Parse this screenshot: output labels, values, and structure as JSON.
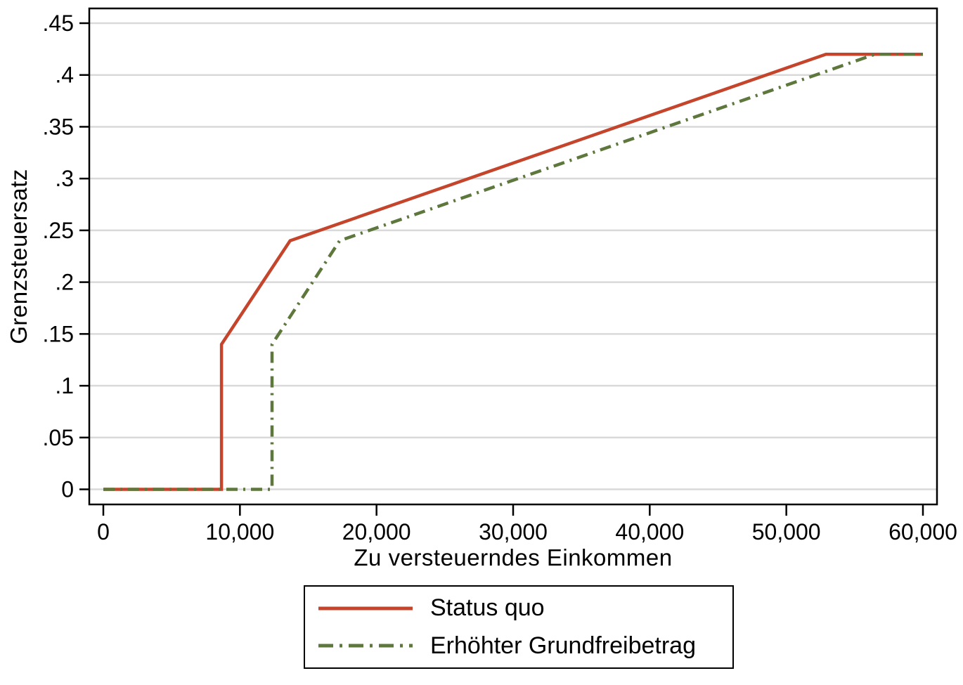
{
  "figure": {
    "background": "#ffffff",
    "frame_color": "#000000",
    "gridline_color": "#d9d9d9",
    "tick_color": "#000000",
    "text_color": "#000000"
  },
  "chart_data": {
    "type": "line",
    "title": "",
    "xlabel": "Zu versteuerndes Einkommen",
    "ylabel": "Grenzsteuersatz",
    "xlim": [
      0,
      60000
    ],
    "ylim": [
      0,
      0.45
    ],
    "grid": "horizontal-only",
    "legend_position": "bottom-center",
    "x_ticks": [
      {
        "value": 0,
        "label": "0"
      },
      {
        "value": 10000,
        "label": "10,000"
      },
      {
        "value": 20000,
        "label": "20,000"
      },
      {
        "value": 30000,
        "label": "30,000"
      },
      {
        "value": 40000,
        "label": "40,000"
      },
      {
        "value": 50000,
        "label": "50,000"
      },
      {
        "value": 60000,
        "label": "60,000"
      }
    ],
    "y_ticks": [
      {
        "value": 0,
        "label": "0"
      },
      {
        "value": 0.05,
        "label": ".05"
      },
      {
        "value": 0.1,
        "label": ".1"
      },
      {
        "value": 0.15,
        "label": ".15"
      },
      {
        "value": 0.2,
        "label": ".2"
      },
      {
        "value": 0.25,
        "label": ".25"
      },
      {
        "value": 0.3,
        "label": ".3"
      },
      {
        "value": 0.35,
        "label": ".35"
      },
      {
        "value": 0.4,
        "label": ".4"
      },
      {
        "value": 0.45,
        "label": ".45"
      }
    ],
    "series": [
      {
        "name": "Status quo",
        "color": "#c5452c",
        "style": "solid",
        "points": [
          [
            0,
            0
          ],
          [
            8650,
            0
          ],
          [
            8650,
            0.14
          ],
          [
            13670,
            0.24
          ],
          [
            52900,
            0.42
          ],
          [
            60000,
            0.42
          ]
        ]
      },
      {
        "name": "Erhöhter Grundfreibetrag",
        "color": "#5d773c",
        "style": "dash-dot",
        "points": [
          [
            0,
            0
          ],
          [
            12350,
            0
          ],
          [
            12350,
            0.14
          ],
          [
            17300,
            0.24
          ],
          [
            56500,
            0.42
          ],
          [
            60000,
            0.42
          ]
        ]
      }
    ]
  }
}
